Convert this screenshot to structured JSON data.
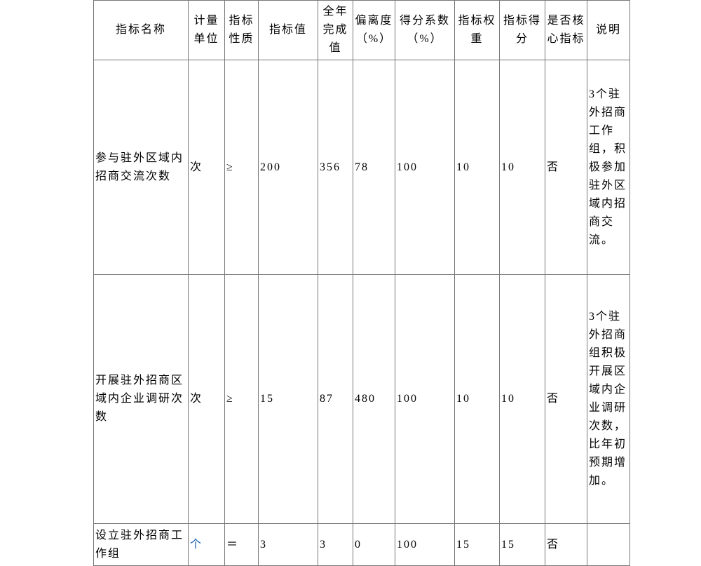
{
  "headers": [
    "指标名称",
    "计量单位",
    "指标性质",
    "指标值",
    "全年完成值",
    "偏离度（%）",
    "得分系数（%）",
    "指标权重",
    "指标得分",
    "是否核心指标",
    "说明"
  ],
  "rows": [
    {
      "name": "参与驻外区域内招商交流次数",
      "unit": "次",
      "nature": "≥",
      "target": "200",
      "actual": "356",
      "deviation": "78",
      "coef": "100",
      "weight": "10",
      "score": "10",
      "core": "否",
      "note": "3个驻外招商工作组，积极参加驻外区域内招商交流。"
    },
    {
      "name": "开展驻外招商区域内企业调研次数",
      "unit": "次",
      "nature": "≥",
      "target": "15",
      "actual": "87",
      "deviation": "480",
      "coef": "100",
      "weight": "10",
      "score": "10",
      "core": "否",
      "note": "3个驻外招商组积极开展区域内企业调研次数，比年初预期增加。"
    },
    {
      "name": "设立驻外招商工作组",
      "unit": "个",
      "nature": "＝",
      "target": "3",
      "actual": "3",
      "deviation": "0",
      "coef": "100",
      "weight": "15",
      "score": "15",
      "core": "否",
      "note": ""
    }
  ]
}
